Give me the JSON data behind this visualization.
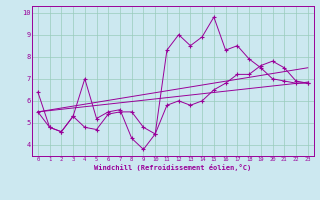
{
  "xlabel": "Windchill (Refroidissement éolien,°C)",
  "ylabel": "",
  "bg_color": "#cce8f0",
  "grid_color": "#99ccbb",
  "line_color": "#990099",
  "xlim": [
    -0.5,
    23.5
  ],
  "ylim": [
    3.5,
    10.3
  ],
  "xticks": [
    0,
    1,
    2,
    3,
    4,
    5,
    6,
    7,
    8,
    9,
    10,
    11,
    12,
    13,
    14,
    15,
    16,
    17,
    18,
    19,
    20,
    21,
    22,
    23
  ],
  "yticks": [
    4,
    5,
    6,
    7,
    8,
    9,
    10
  ],
  "series1_x": [
    0,
    1,
    2,
    3,
    4,
    5,
    6,
    7,
    8,
    9,
    10,
    11,
    12,
    13,
    14,
    15,
    16,
    17,
    18,
    19,
    20,
    21,
    22,
    23
  ],
  "series1_y": [
    6.4,
    4.8,
    4.6,
    5.3,
    7.0,
    5.2,
    5.5,
    5.6,
    4.3,
    3.8,
    4.5,
    8.3,
    9.0,
    8.5,
    8.9,
    9.8,
    8.3,
    8.5,
    7.9,
    7.5,
    7.0,
    6.9,
    6.8,
    6.8
  ],
  "series2_x": [
    0,
    1,
    2,
    3,
    4,
    5,
    6,
    7,
    8,
    9,
    10,
    11,
    12,
    13,
    14,
    15,
    16,
    17,
    18,
    19,
    20,
    21,
    22,
    23
  ],
  "series2_y": [
    5.5,
    4.8,
    4.6,
    5.3,
    4.8,
    4.7,
    5.4,
    5.5,
    5.5,
    4.8,
    4.5,
    5.8,
    6.0,
    5.8,
    6.0,
    6.5,
    6.8,
    7.2,
    7.2,
    7.6,
    7.8,
    7.5,
    6.9,
    6.8
  ],
  "trend1_x": [
    0,
    23
  ],
  "trend1_y": [
    5.5,
    7.5
  ],
  "trend2_x": [
    0,
    23
  ],
  "trend2_y": [
    5.5,
    6.85
  ]
}
